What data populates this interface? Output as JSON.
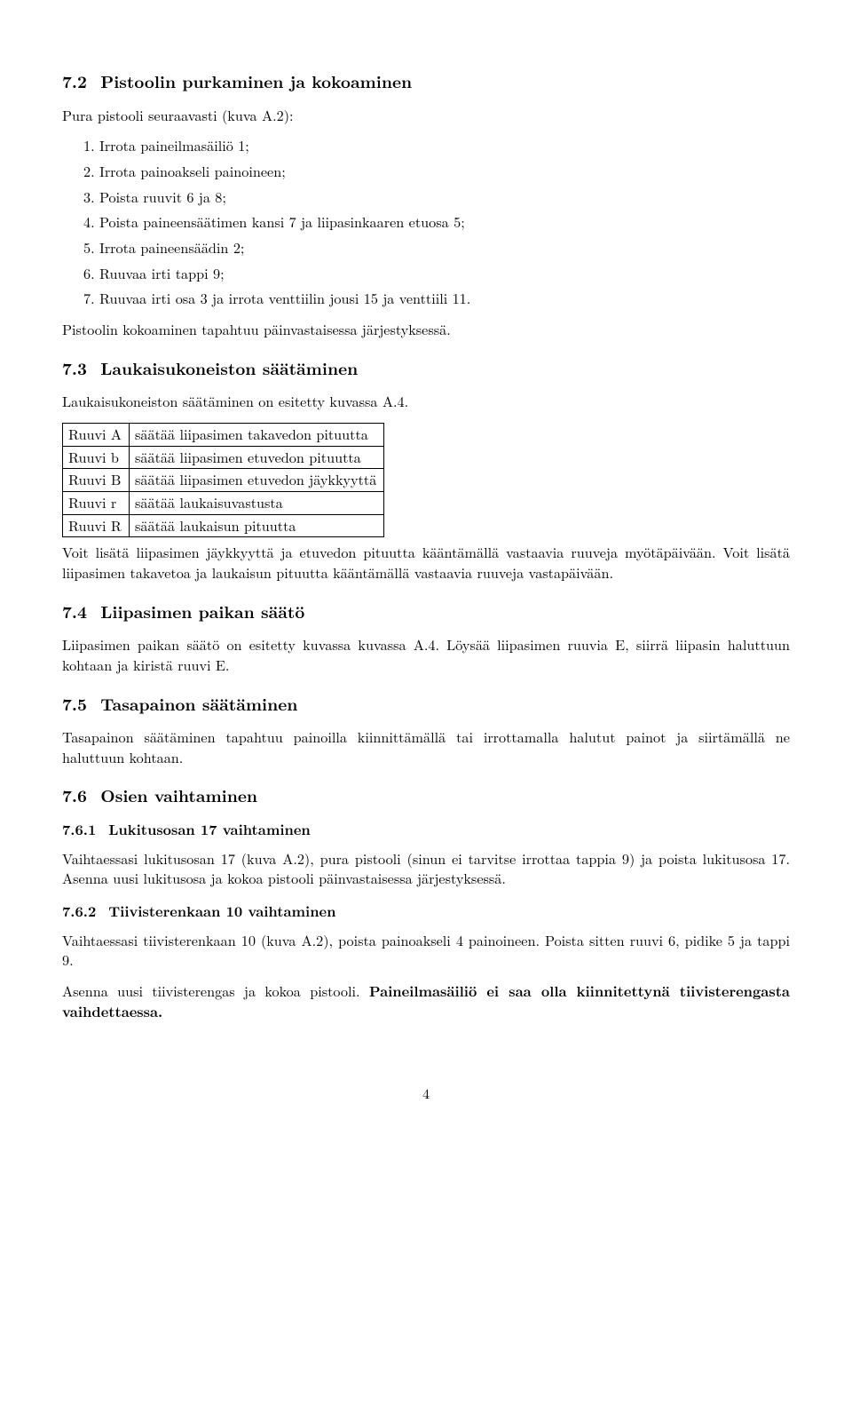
{
  "sections": {
    "s72": {
      "num": "7.2",
      "title": "Pistoolin purkaminen ja kokoaminen",
      "intro": "Pura pistooli seuraavasti (kuva A.2):",
      "steps": [
        "1. Irrota paineilmasäiliö 1;",
        "2. Irrota painoakseli painoineen;",
        "3. Poista ruuvit 6 ja 8;",
        "4. Poista paineensäätimen kansi 7 ja liipasinkaaren etuosa 5;",
        "5. Irrota paineensäädin 2;",
        "6. Ruuvaa irti tappi 9;",
        "7. Ruuvaa irti osa 3 ja irrota venttiilin jousi 15 ja venttiili 11."
      ],
      "outro": "Pistoolin kokoaminen tapahtuu päinvastaisessa järjestyksessä."
    },
    "s73": {
      "num": "7.3",
      "title": "Laukaisukoneiston säätäminen",
      "intro": "Laukaisukoneiston säätäminen on esitetty kuvassa A.4.",
      "table": [
        [
          "Ruuvi A",
          "säätää liipasimen takavedon pituutta"
        ],
        [
          "Ruuvi b",
          "säätää liipasimen etuvedon pituutta"
        ],
        [
          "Ruuvi B",
          "säätää liipasimen etuvedon jäykkyyttä"
        ],
        [
          "Ruuvi r",
          "säätää laukaisuvastusta"
        ],
        [
          "Ruuvi R",
          "säätää laukaisun pituutta"
        ]
      ],
      "outro": "Voit lisätä liipasimen jäykkyyttä ja etuvedon pituutta kääntämällä vastaavia ruuveja myötäpäivään. Voit lisätä liipasimen takavetoa ja laukaisun pituutta kääntämällä vastaavia ruuveja vastapäivään."
    },
    "s74": {
      "num": "7.4",
      "title": "Liipasimen paikan säätö",
      "body": "Liipasimen paikan säätö on esitetty kuvassa kuvassa A.4. Löysää liipasimen ruuvia E, siirrä liipasin haluttuun kohtaan ja kiristä ruuvi E."
    },
    "s75": {
      "num": "7.5",
      "title": "Tasapainon säätäminen",
      "body": "Tasapainon säätäminen tapahtuu painoilla kiinnittämällä tai irrottamalla halutut painot ja siirtämällä ne haluttuun kohtaan."
    },
    "s76": {
      "num": "7.6",
      "title": "Osien vaihtaminen",
      "s761": {
        "num": "7.6.1",
        "title": "Lukitusosan 17 vaihtaminen",
        "body": "Vaihtaessasi lukitusosan 17 (kuva A.2), pura pistooli (sinun ei tarvitse irrottaa tappia 9) ja poista lukitusosa 17. Asenna uusi lukitusosa ja kokoa pistooli päinvastaisessa järjestyksessä."
      },
      "s762": {
        "num": "7.6.2",
        "title": "Tiivisterenkaan 10 vaihtaminen",
        "body1": "Vaihtaessasi tiivisterenkaan 10 (kuva A.2), poista painoakseli 4 painoineen. Poista sitten ruuvi 6, pidike 5 ja tappi 9.",
        "body2a": "Asenna uusi tiivisterengas ja kokoa pistooli. ",
        "body2b": "Paineilmasäiliö ei saa olla kiinnitettynä tiivisterengasta vaihdettaessa."
      }
    }
  },
  "page_number": "4"
}
